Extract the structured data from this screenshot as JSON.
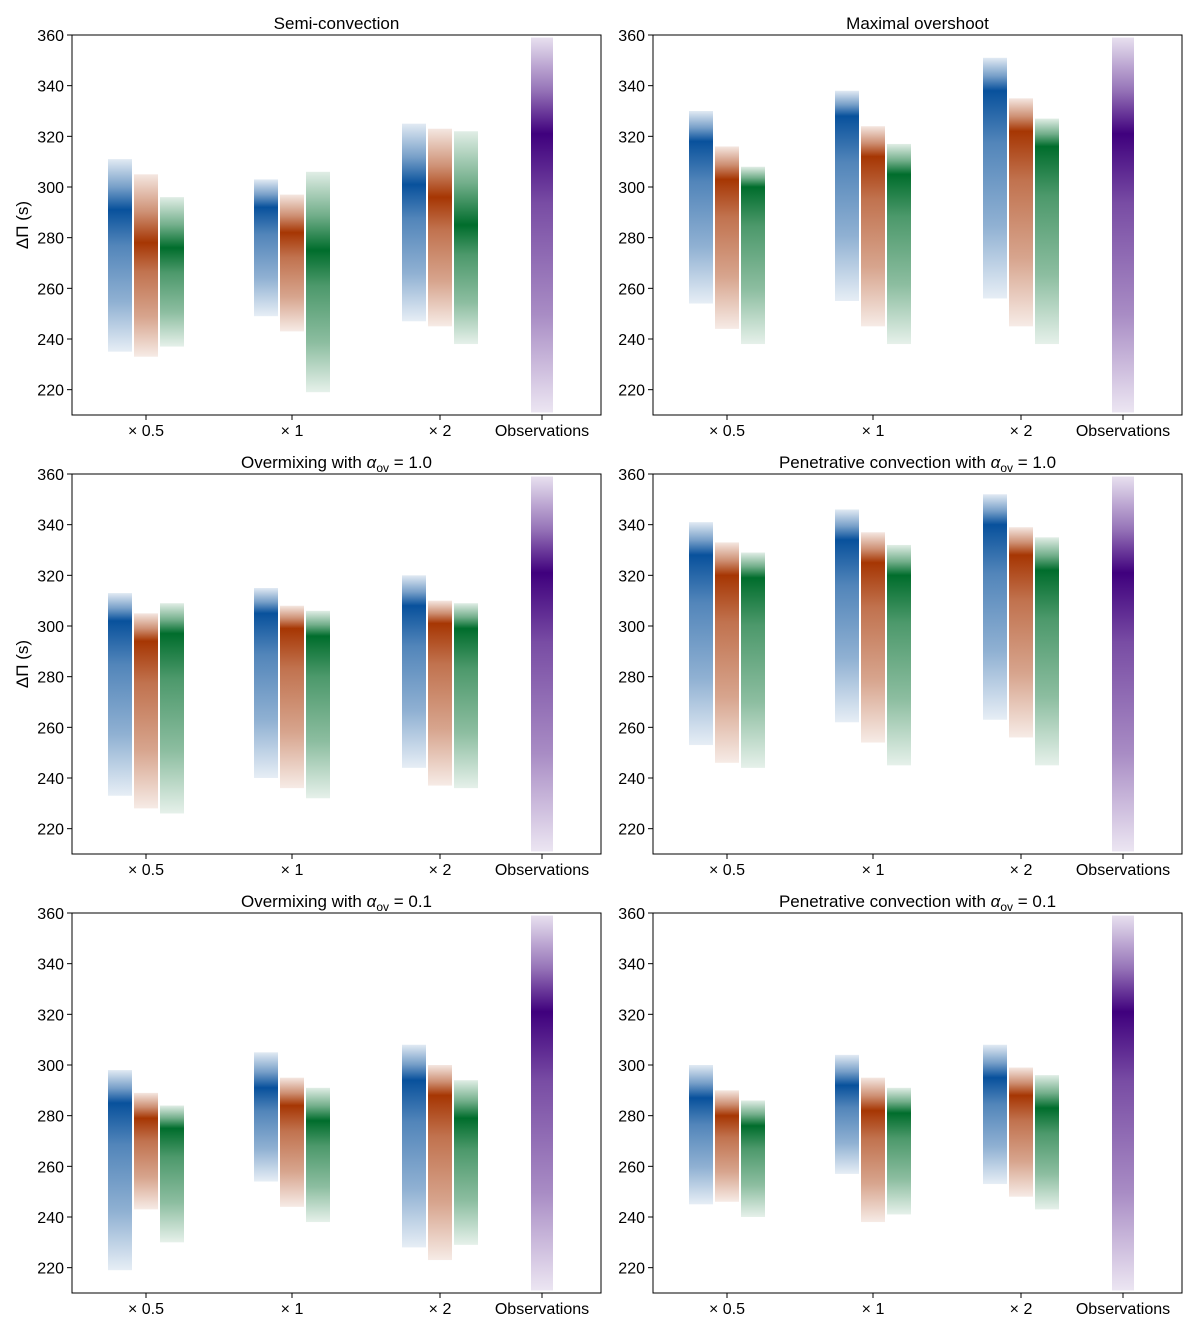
{
  "figure": {
    "ylabel": "ΔΠ (s)",
    "ylim": [
      210,
      360
    ],
    "yticks": [
      220,
      240,
      260,
      280,
      300,
      320,
      340,
      360
    ],
    "categories": [
      "× 0.5",
      "× 1",
      "× 2",
      "Observations"
    ],
    "colors": {
      "blue": "#08519c",
      "orange": "#a63603",
      "green": "#006d2c",
      "observations": "#3f007d"
    }
  },
  "chart_data": [
    {
      "type": "heatmap",
      "title": "Semi-convection",
      "ylabel": "ΔΠ (s)",
      "ylim": [
        210,
        360
      ],
      "categories": [
        "× 0.5",
        "× 1",
        "× 2",
        "Observations"
      ],
      "groups": [
        {
          "category": "× 0.5",
          "bands": [
            {
              "color": "blue",
              "low": 235,
              "high": 311,
              "peak": 291
            },
            {
              "color": "orange",
              "low": 233,
              "high": 305,
              "peak": 278
            },
            {
              "color": "green",
              "low": 237,
              "high": 296,
              "peak": 276
            }
          ]
        },
        {
          "category": "× 1",
          "bands": [
            {
              "color": "blue",
              "low": 249,
              "high": 303,
              "peak": 292
            },
            {
              "color": "orange",
              "low": 243,
              "high": 297,
              "peak": 282
            },
            {
              "color": "green",
              "low": 219,
              "high": 306,
              "peak": 275
            }
          ]
        },
        {
          "category": "× 2",
          "bands": [
            {
              "color": "blue",
              "low": 247,
              "high": 325,
              "peak": 301
            },
            {
              "color": "orange",
              "low": 245,
              "high": 323,
              "peak": 296
            },
            {
              "color": "green",
              "low": 238,
              "high": 322,
              "peak": 285
            }
          ]
        },
        {
          "category": "Observations",
          "bands": [
            {
              "color": "observations",
              "low": 211,
              "high": 359,
              "peak": 321
            }
          ]
        }
      ]
    },
    {
      "type": "heatmap",
      "title": "Maximal overshoot",
      "ylabel": "",
      "ylim": [
        210,
        360
      ],
      "categories": [
        "× 0.5",
        "× 1",
        "× 2",
        "Observations"
      ],
      "groups": [
        {
          "category": "× 0.5",
          "bands": [
            {
              "color": "blue",
              "low": 254,
              "high": 330,
              "peak": 318
            },
            {
              "color": "orange",
              "low": 244,
              "high": 316,
              "peak": 303
            },
            {
              "color": "green",
              "low": 238,
              "high": 308,
              "peak": 300
            }
          ]
        },
        {
          "category": "× 1",
          "bands": [
            {
              "color": "blue",
              "low": 255,
              "high": 338,
              "peak": 328
            },
            {
              "color": "orange",
              "low": 245,
              "high": 324,
              "peak": 312
            },
            {
              "color": "green",
              "low": 238,
              "high": 317,
              "peak": 305
            }
          ]
        },
        {
          "category": "× 2",
          "bands": [
            {
              "color": "blue",
              "low": 256,
              "high": 351,
              "peak": 338
            },
            {
              "color": "orange",
              "low": 245,
              "high": 335,
              "peak": 322
            },
            {
              "color": "green",
              "low": 238,
              "high": 327,
              "peak": 316
            }
          ]
        },
        {
          "category": "Observations",
          "bands": [
            {
              "color": "observations",
              "low": 211,
              "high": 359,
              "peak": 321
            }
          ]
        }
      ]
    },
    {
      "type": "heatmap",
      "title": "Overmixing with α",
      "title_subscript": "ov",
      "title_suffix": " = 1.0",
      "ylabel": "ΔΠ (s)",
      "ylim": [
        210,
        360
      ],
      "categories": [
        "× 0.5",
        "× 1",
        "× 2",
        "Observations"
      ],
      "groups": [
        {
          "category": "× 0.5",
          "bands": [
            {
              "color": "blue",
              "low": 233,
              "high": 313,
              "peak": 302
            },
            {
              "color": "orange",
              "low": 228,
              "high": 305,
              "peak": 294
            },
            {
              "color": "green",
              "low": 226,
              "high": 309,
              "peak": 297
            }
          ]
        },
        {
          "category": "× 1",
          "bands": [
            {
              "color": "blue",
              "low": 240,
              "high": 315,
              "peak": 305
            },
            {
              "color": "orange",
              "low": 236,
              "high": 308,
              "peak": 299
            },
            {
              "color": "green",
              "low": 232,
              "high": 306,
              "peak": 296
            }
          ]
        },
        {
          "category": "× 2",
          "bands": [
            {
              "color": "blue",
              "low": 244,
              "high": 320,
              "peak": 308
            },
            {
              "color": "orange",
              "low": 237,
              "high": 310,
              "peak": 301
            },
            {
              "color": "green",
              "low": 236,
              "high": 309,
              "peak": 299
            }
          ]
        },
        {
          "category": "Observations",
          "bands": [
            {
              "color": "observations",
              "low": 211,
              "high": 359,
              "peak": 321
            }
          ]
        }
      ]
    },
    {
      "type": "heatmap",
      "title": "Penetrative convection with α",
      "title_subscript": "ov",
      "title_suffix": " = 1.0",
      "ylabel": "",
      "ylim": [
        210,
        360
      ],
      "categories": [
        "× 0.5",
        "× 1",
        "× 2",
        "Observations"
      ],
      "groups": [
        {
          "category": "× 0.5",
          "bands": [
            {
              "color": "blue",
              "low": 253,
              "high": 341,
              "peak": 328
            },
            {
              "color": "orange",
              "low": 246,
              "high": 333,
              "peak": 320
            },
            {
              "color": "green",
              "low": 244,
              "high": 329,
              "peak": 319
            }
          ]
        },
        {
          "category": "× 1",
          "bands": [
            {
              "color": "blue",
              "low": 262,
              "high": 346,
              "peak": 334
            },
            {
              "color": "orange",
              "low": 254,
              "high": 337,
              "peak": 325
            },
            {
              "color": "green",
              "low": 245,
              "high": 332,
              "peak": 320
            }
          ]
        },
        {
          "category": "× 2",
          "bands": [
            {
              "color": "blue",
              "low": 263,
              "high": 352,
              "peak": 340
            },
            {
              "color": "orange",
              "low": 256,
              "high": 339,
              "peak": 328
            },
            {
              "color": "green",
              "low": 245,
              "high": 335,
              "peak": 322
            }
          ]
        },
        {
          "category": "Observations",
          "bands": [
            {
              "color": "observations",
              "low": 211,
              "high": 359,
              "peak": 321
            }
          ]
        }
      ]
    },
    {
      "type": "heatmap",
      "title": "Overmixing with α",
      "title_subscript": "ov",
      "title_suffix": " = 0.1",
      "ylabel": "",
      "ylim": [
        210,
        360
      ],
      "categories": [
        "× 0.5",
        "× 1",
        "× 2",
        "Observations"
      ],
      "groups": [
        {
          "category": "× 0.5",
          "bands": [
            {
              "color": "blue",
              "low": 219,
              "high": 298,
              "peak": 285
            },
            {
              "color": "orange",
              "low": 243,
              "high": 289,
              "peak": 279
            },
            {
              "color": "green",
              "low": 230,
              "high": 284,
              "peak": 275
            }
          ]
        },
        {
          "category": "× 1",
          "bands": [
            {
              "color": "blue",
              "low": 254,
              "high": 305,
              "peak": 291
            },
            {
              "color": "orange",
              "low": 244,
              "high": 295,
              "peak": 284
            },
            {
              "color": "green",
              "low": 238,
              "high": 291,
              "peak": 278
            }
          ]
        },
        {
          "category": "× 2",
          "bands": [
            {
              "color": "blue",
              "low": 228,
              "high": 308,
              "peak": 294
            },
            {
              "color": "orange",
              "low": 223,
              "high": 300,
              "peak": 288
            },
            {
              "color": "green",
              "low": 229,
              "high": 294,
              "peak": 279
            }
          ]
        },
        {
          "category": "Observations",
          "bands": [
            {
              "color": "observations",
              "low": 211,
              "high": 359,
              "peak": 321
            }
          ]
        }
      ]
    },
    {
      "type": "heatmap",
      "title": "Penetrative convection with α",
      "title_subscript": "ov",
      "title_suffix": " = 0.1",
      "ylabel": "",
      "ylim": [
        210,
        360
      ],
      "categories": [
        "× 0.5",
        "× 1",
        "× 2",
        "Observations"
      ],
      "groups": [
        {
          "category": "× 0.5",
          "bands": [
            {
              "color": "blue",
              "low": 245,
              "high": 300,
              "peak": 287
            },
            {
              "color": "orange",
              "low": 246,
              "high": 290,
              "peak": 280
            },
            {
              "color": "green",
              "low": 240,
              "high": 286,
              "peak": 276
            }
          ]
        },
        {
          "category": "× 1",
          "bands": [
            {
              "color": "blue",
              "low": 257,
              "high": 304,
              "peak": 292
            },
            {
              "color": "orange",
              "low": 238,
              "high": 295,
              "peak": 282
            },
            {
              "color": "green",
              "low": 241,
              "high": 291,
              "peak": 281
            }
          ]
        },
        {
          "category": "× 2",
          "bands": [
            {
              "color": "blue",
              "low": 253,
              "high": 308,
              "peak": 295
            },
            {
              "color": "orange",
              "low": 248,
              "high": 299,
              "peak": 288
            },
            {
              "color": "green",
              "low": 243,
              "high": 296,
              "peak": 283
            }
          ]
        },
        {
          "category": "Observations",
          "bands": [
            {
              "color": "observations",
              "low": 211,
              "high": 359,
              "peak": 321
            }
          ]
        }
      ]
    }
  ]
}
